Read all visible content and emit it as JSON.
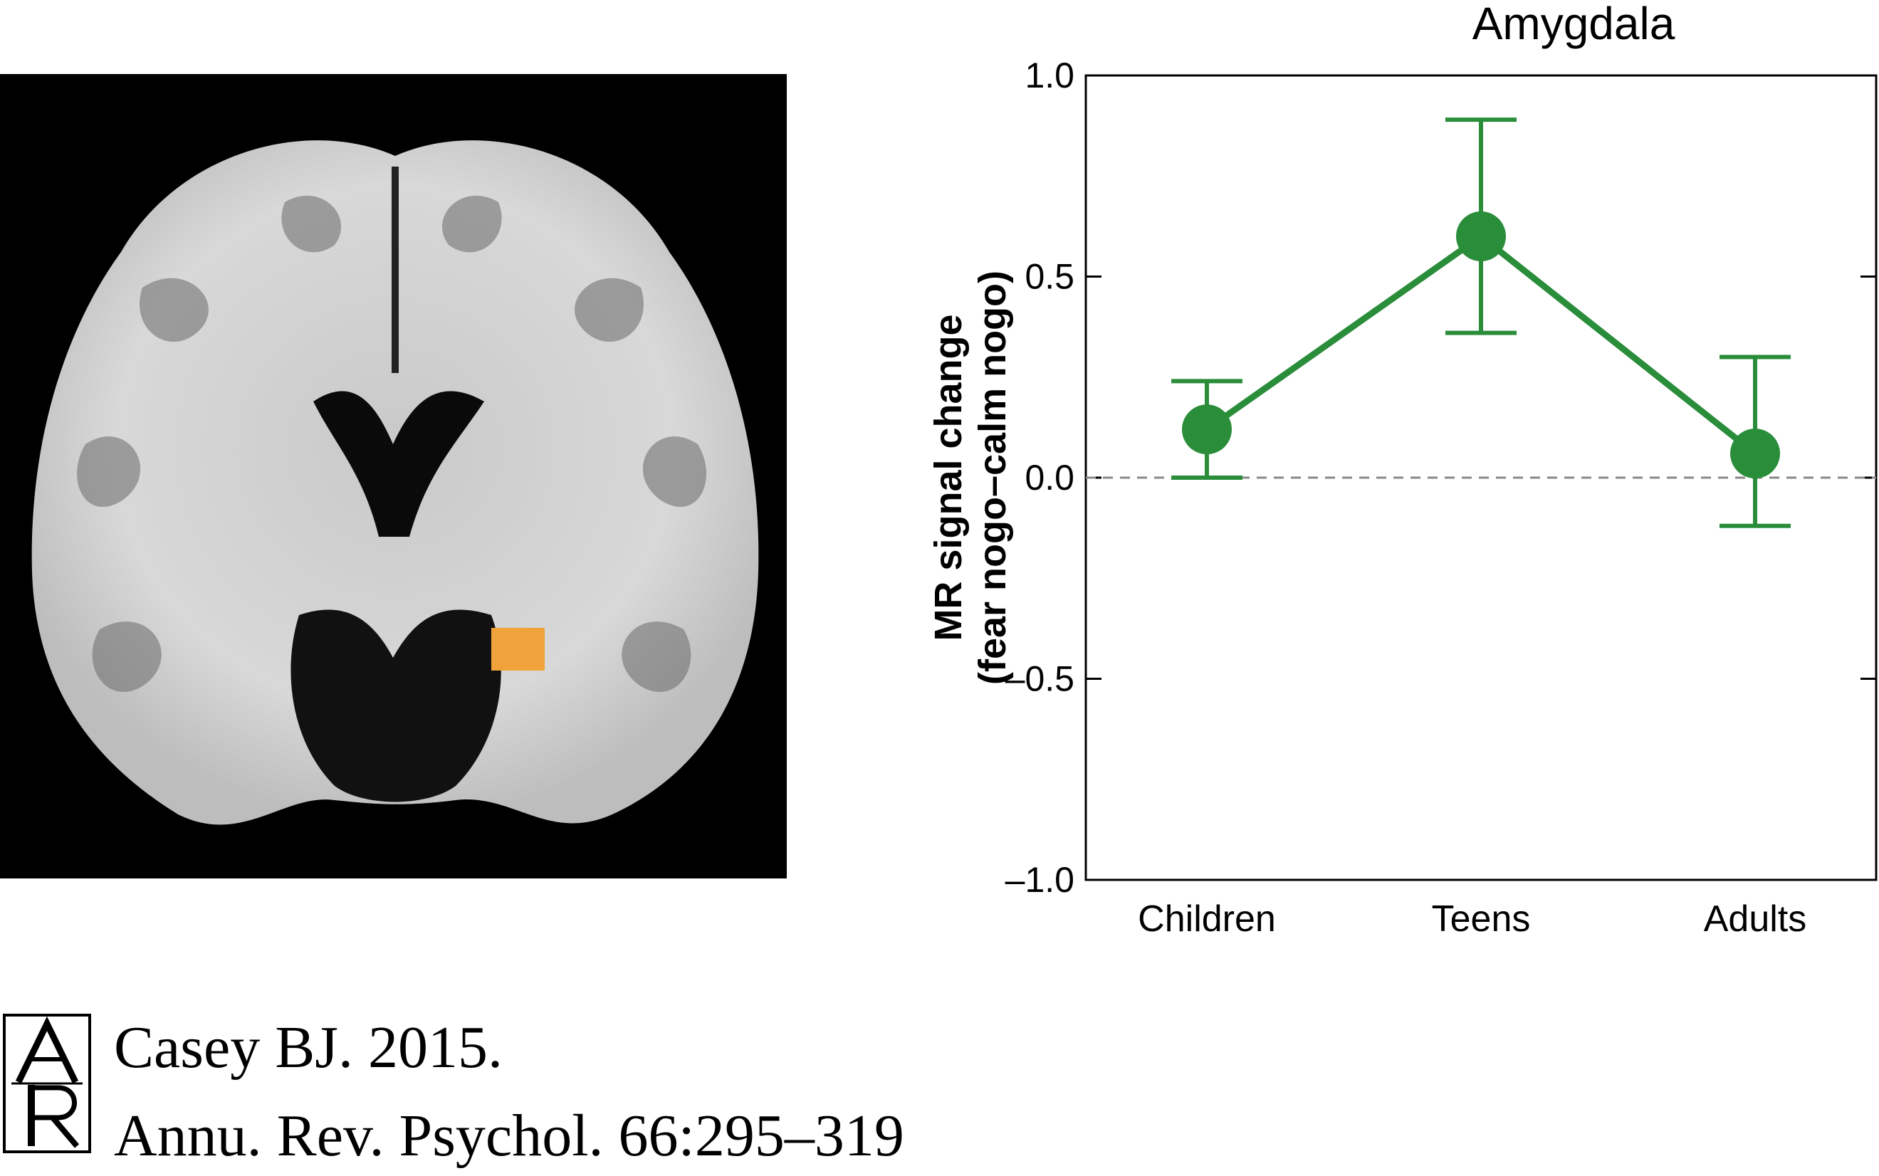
{
  "figure": {
    "brain_image": {
      "highlight_color": "#f0a33a"
    },
    "colors": {
      "series": "#2a8d3a",
      "zero_line": "#888888"
    }
  },
  "chart_data": {
    "type": "line",
    "title": "Amygdala",
    "ylabel": [
      "MR signal change",
      "(fear nogo–calm nogo)"
    ],
    "xlabel": "",
    "categories": [
      "Children",
      "Teens",
      "Adults"
    ],
    "ylim": [
      -1.0,
      1.0
    ],
    "yticks": [
      1.0,
      0.5,
      0.0,
      -0.5,
      -1.0
    ],
    "ytick_labels": [
      "1.0",
      "0.5",
      "0.0",
      "–0.5",
      "–1.0"
    ],
    "zero_line": "dashed",
    "grid": false,
    "legend": "none",
    "series": [
      {
        "values": [
          0.12,
          0.6,
          0.06
        ],
        "error_low": [
          0.0,
          0.36,
          -0.12
        ],
        "error_high": [
          0.24,
          0.89,
          0.3
        ]
      }
    ]
  },
  "citation": {
    "logo": "AR",
    "line1": "Casey BJ. 2015.",
    "line2": "Annu. Rev. Psychol. 66:295–319"
  }
}
